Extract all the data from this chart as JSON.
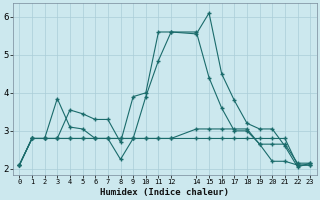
{
  "xlabel": "Humidex (Indice chaleur)",
  "bg_color": "#cce8ee",
  "grid_color": "#aacdd8",
  "line_color": "#1a6b6b",
  "xlim": [
    -0.5,
    23.5
  ],
  "ylim": [
    1.85,
    6.35
  ],
  "xtick_vals": [
    0,
    1,
    2,
    3,
    4,
    5,
    6,
    7,
    8,
    9,
    10,
    11,
    12,
    14,
    15,
    16,
    17,
    18,
    19,
    20,
    21,
    22,
    23
  ],
  "xtick_labels": [
    "0",
    "1",
    "2",
    "3",
    "4",
    "5",
    "6",
    "7",
    "8",
    "9",
    "10",
    "11",
    "12",
    "14",
    "15",
    "16",
    "17",
    "18",
    "19",
    "20",
    "21",
    "22",
    "23"
  ],
  "yticks": [
    2,
    3,
    4,
    5,
    6
  ],
  "series": [
    {
      "x": [
        0,
        1,
        2,
        3,
        4,
        5,
        6,
        7,
        8,
        9,
        10,
        11,
        12,
        14,
        15,
        16,
        17,
        18,
        19,
        20,
        21,
        22,
        23
      ],
      "y": [
        2.1,
        2.8,
        2.8,
        3.85,
        3.1,
        3.05,
        2.8,
        2.8,
        2.25,
        2.8,
        3.9,
        4.85,
        5.6,
        5.55,
        6.1,
        4.5,
        3.8,
        3.2,
        3.05,
        3.05,
        2.6,
        2.05,
        2.15
      ]
    },
    {
      "x": [
        0,
        1,
        2,
        3,
        4,
        5,
        6,
        7,
        8,
        9,
        10,
        11,
        12,
        14,
        15,
        16,
        17,
        18,
        19,
        20,
        21,
        22,
        23
      ],
      "y": [
        2.1,
        2.8,
        2.8,
        2.8,
        3.55,
        3.45,
        3.3,
        3.3,
        2.7,
        3.9,
        4.0,
        5.6,
        5.6,
        5.6,
        4.4,
        3.6,
        3.0,
        3.0,
        2.65,
        2.65,
        2.65,
        2.15,
        2.15
      ]
    },
    {
      "x": [
        0,
        1,
        2,
        3,
        4,
        5,
        6,
        7,
        8,
        9,
        10,
        11,
        12,
        14,
        15,
        16,
        17,
        18,
        19,
        20,
        21,
        22,
        23
      ],
      "y": [
        2.1,
        2.8,
        2.8,
        2.8,
        2.8,
        2.8,
        2.8,
        2.8,
        2.8,
        2.8,
        2.8,
        2.8,
        2.8,
        2.8,
        2.8,
        2.8,
        2.8,
        2.8,
        2.8,
        2.8,
        2.8,
        2.1,
        2.1
      ]
    },
    {
      "x": [
        0,
        1,
        2,
        3,
        4,
        5,
        6,
        7,
        8,
        9,
        10,
        11,
        12,
        14,
        15,
        16,
        17,
        18,
        19,
        20,
        21,
        22,
        23
      ],
      "y": [
        2.1,
        2.8,
        2.8,
        2.8,
        2.8,
        2.8,
        2.8,
        2.8,
        2.8,
        2.8,
        2.8,
        2.8,
        2.8,
        3.05,
        3.05,
        3.05,
        3.05,
        3.05,
        2.65,
        2.2,
        2.2,
        2.1,
        2.1
      ]
    }
  ]
}
